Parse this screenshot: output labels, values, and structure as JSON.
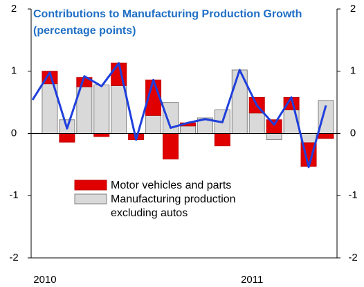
{
  "chart_data": {
    "type": "bar",
    "title": "Contributions to Manufacturing Production Growth (percentage points)",
    "categories": [
      null,
      "2010",
      null,
      null,
      null,
      null,
      null,
      null,
      null,
      null,
      null,
      null,
      null,
      "2011",
      null,
      null,
      null,
      null
    ],
    "series": [
      {
        "name": "Manufacturing production excluding autos",
        "color": "#d9d9d9",
        "values": [
          null,
          0.8,
          0.22,
          0.75,
          0.78,
          0.77,
          0,
          0.29,
          0.5,
          0.12,
          0.25,
          0.38,
          1.02,
          0.33,
          -0.1,
          0.38,
          -0.15,
          0.53
        ]
      },
      {
        "name": "Motor vehicles and parts",
        "color": "#e00000",
        "values": [
          null,
          0.2,
          -0.14,
          0.15,
          -0.05,
          0.36,
          -0.1,
          0.57,
          -0.41,
          0.05,
          0,
          -0.2,
          0,
          0.25,
          0.22,
          0.2,
          -0.38,
          -0.08
        ]
      }
    ],
    "line": {
      "color": "#1f3fdc",
      "values": [
        0.54,
        0.98,
        0.08,
        0.92,
        0.76,
        1.13,
        -0.1,
        0.86,
        0.09,
        0.17,
        0.23,
        0.18,
        1.02,
        0.45,
        0.14,
        0.58,
        -0.54,
        0.45
      ]
    },
    "ylim": [
      -2,
      2
    ],
    "yticks": [
      -2,
      -1,
      0,
      1,
      2
    ]
  }
}
